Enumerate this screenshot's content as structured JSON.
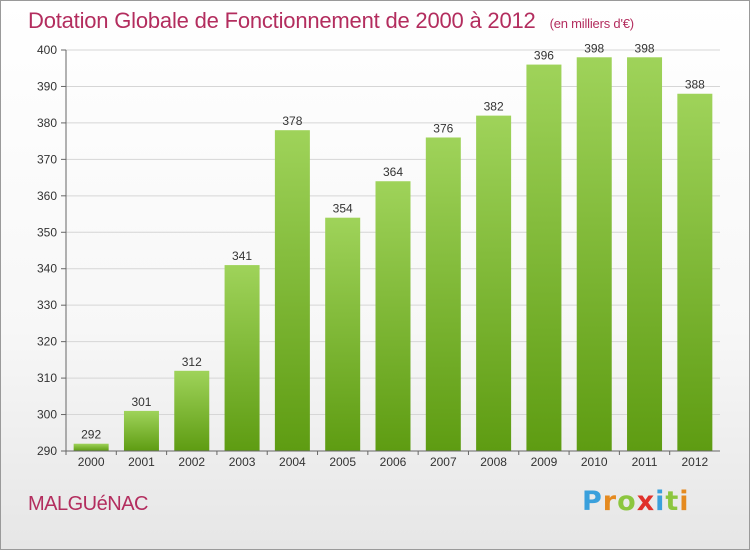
{
  "title": "Dotation Globale de Fonctionnement de 2000 à 2012",
  "unit_note": "(en milliers d'€)",
  "commune": "MALGUéNAC",
  "logo": {
    "letters": [
      "P",
      "r",
      "o",
      "x",
      "i",
      "t",
      "i"
    ],
    "colors": [
      "#3aa0dc",
      "#e58a1f",
      "#8cc63f",
      "#e0312b",
      "#3aa0dc",
      "#8cc63f",
      "#e58a1f"
    ]
  },
  "colors": {
    "bar_top": "#9fd35a",
    "bar_bottom": "#5e9c12",
    "title": "#b32d5e"
  },
  "chart_data": {
    "type": "bar",
    "categories": [
      "2000",
      "2001",
      "2002",
      "2003",
      "2004",
      "2005",
      "2006",
      "2007",
      "2008",
      "2009",
      "2010",
      "2011",
      "2012"
    ],
    "values": [
      292,
      301,
      312,
      341,
      378,
      354,
      364,
      376,
      382,
      396,
      398,
      398,
      388
    ],
    "title": "Dotation Globale de Fonctionnement de 2000 à 2012",
    "xlabel": "",
    "ylabel": "",
    "ylim": [
      290,
      400
    ],
    "yticks": [
      290,
      300,
      310,
      320,
      330,
      340,
      350,
      360,
      370,
      380,
      390,
      400
    ],
    "grid": true
  }
}
